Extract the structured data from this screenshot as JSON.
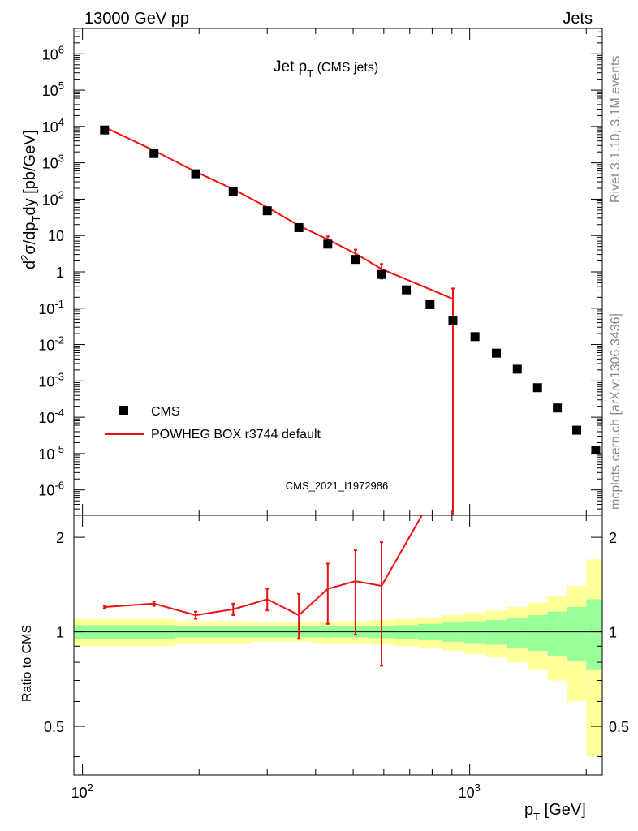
{
  "header": {
    "left": "13000 GeV pp",
    "right": "Jets"
  },
  "plot": {
    "title_main": "Jet p",
    "title_sub": "T",
    "title_tail": " (CMS jets)",
    "analysis_id": "CMS_2021_I1972986"
  },
  "side_labels": {
    "rivet": "Rivet 3.1.10,  3.1M events",
    "mcplots": "mcplots.cern.ch [arXiv:1306.3436]"
  },
  "axes": {
    "ylabel_main": "d²σ/dp_T dy [pb/GeV]",
    "ylabel_ratio": "Ratio to CMS",
    "xlabel_main": "p",
    "xlabel_sub": "T",
    "xlabel_unit": " [GeV]"
  },
  "legend": {
    "data_label": "CMS",
    "mc_label": "POWHEG BOX r3744 default"
  },
  "colors": {
    "data": "#000000",
    "mc": "#ee1111",
    "band_inner": "#99ff99",
    "band_outer": "#ffff99"
  },
  "chart_data": [
    {
      "type": "scatter",
      "log_x": true,
      "log_y": true,
      "xlim": [
        95,
        2200
      ],
      "ylim": [
        2e-07,
        5000000.0
      ],
      "y_ticks": [
        "10^6",
        "10^5",
        "10^4",
        "10^3",
        "10^2",
        "10",
        "1",
        "10^-1",
        "10^-2",
        "10^-3",
        "10^-4",
        "10^-5",
        "10^-6"
      ],
      "x_ticks": [
        "10^2",
        "10^3"
      ],
      "series": [
        {
          "name": "CMS",
          "x": [
            114,
            153,
            196,
            245,
            300,
            362,
            430,
            507,
            592,
            686,
            790,
            905,
            1032,
            1172,
            1327,
            1497,
            1684,
            1890,
            2116
          ],
          "y": [
            8000,
            1800,
            500,
            160,
            48,
            16.5,
            5.8,
            2.2,
            0.85,
            0.32,
            0.125,
            0.045,
            0.0165,
            0.0058,
            0.0021,
            0.00065,
            0.00018,
            4.4e-05,
            1.25e-05
          ]
        },
        {
          "name": "POWHEG BOX r3744 default",
          "x": [
            114,
            153,
            196,
            245,
            300,
            362,
            430,
            507,
            592,
            905
          ],
          "y": [
            9600,
            2180,
            570,
            188,
            60,
            18.8,
            7.8,
            3.2,
            1.2,
            0.18
          ],
          "err_hi": [
            null,
            null,
            null,
            null,
            null,
            null,
            9.5,
            4.1,
            1.65,
            0.35
          ],
          "err_lo": [
            null,
            null,
            null,
            null,
            null,
            null,
            6.2,
            2.3,
            0.65,
            1e-07
          ]
        }
      ]
    },
    {
      "type": "line",
      "log_x": true,
      "ylim": [
        0.35,
        2.35
      ],
      "y_ticks": [
        0.5,
        1,
        2
      ],
      "x": [
        114,
        153,
        196,
        245,
        300,
        362,
        430,
        507,
        592,
        905
      ],
      "series": [
        {
          "name": "POWHEG BOX r3744 default",
          "values": [
            1.2,
            1.23,
            1.13,
            1.18,
            1.27,
            1.13,
            1.37,
            1.45,
            1.4,
            3.5
          ],
          "err_lo": [
            1.19,
            1.21,
            1.1,
            1.13,
            1.17,
            0.95,
            1.06,
            0.98,
            0.78,
            null
          ],
          "err_hi": [
            1.21,
            1.25,
            1.16,
            1.23,
            1.37,
            1.32,
            1.65,
            1.82,
            1.93,
            null
          ]
        }
      ],
      "band_edges": [
        95,
        132,
        174,
        220,
        272,
        331,
        395,
        468,
        548,
        638,
        737,
        847,
        967,
        1101,
        1248,
        1410,
        1588,
        1784,
        2000,
        2200
      ],
      "band_inner": [
        [
          0.95,
          1.05
        ],
        [
          0.95,
          1.05
        ],
        [
          0.96,
          1.04
        ],
        [
          0.96,
          1.04
        ],
        [
          0.96,
          1.04
        ],
        [
          0.96,
          1.04
        ],
        [
          0.96,
          1.04
        ],
        [
          0.96,
          1.04
        ],
        [
          0.955,
          1.045
        ],
        [
          0.95,
          1.05
        ],
        [
          0.94,
          1.06
        ],
        [
          0.93,
          1.07
        ],
        [
          0.92,
          1.08
        ],
        [
          0.91,
          1.09
        ],
        [
          0.89,
          1.11
        ],
        [
          0.87,
          1.13
        ],
        [
          0.84,
          1.16
        ],
        [
          0.81,
          1.2
        ],
        [
          0.76,
          1.27
        ]
      ],
      "band_outer": [
        [
          0.9,
          1.1
        ],
        [
          0.9,
          1.1
        ],
        [
          0.92,
          1.08
        ],
        [
          0.92,
          1.08
        ],
        [
          0.93,
          1.07
        ],
        [
          0.93,
          1.07
        ],
        [
          0.92,
          1.08
        ],
        [
          0.92,
          1.08
        ],
        [
          0.91,
          1.09
        ],
        [
          0.9,
          1.1
        ],
        [
          0.89,
          1.11
        ],
        [
          0.87,
          1.13
        ],
        [
          0.85,
          1.15
        ],
        [
          0.83,
          1.17
        ],
        [
          0.8,
          1.2
        ],
        [
          0.76,
          1.24
        ],
        [
          0.7,
          1.3
        ],
        [
          0.6,
          1.4
        ],
        [
          0.4,
          1.7
        ]
      ]
    }
  ]
}
